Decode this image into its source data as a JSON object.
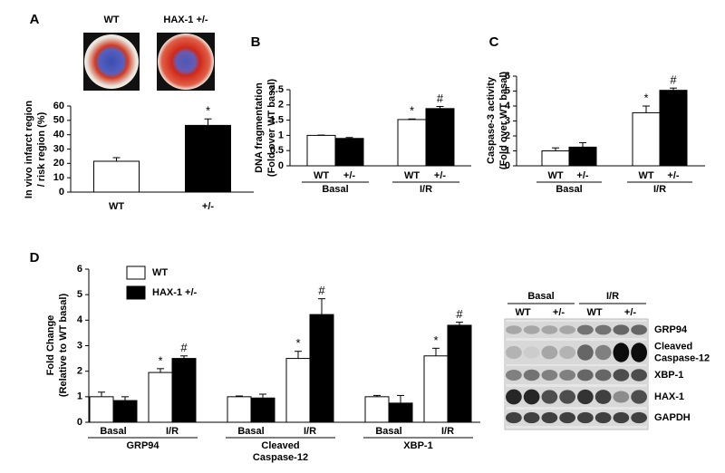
{
  "chart_data": [
    {
      "type": "bar",
      "panel": "A",
      "image_labels": [
        "WT",
        "HAX-1 +/-"
      ],
      "ylabel": [
        "In vivo infarct region",
        "/ risk region (%)"
      ],
      "categories": [
        "WT",
        "+/-"
      ],
      "values": [
        21.5,
        46.5
      ],
      "errors": [
        2.5,
        4.5
      ],
      "annotations": [
        null,
        "*"
      ],
      "colors": [
        "#ffffff",
        "#000000"
      ],
      "edgecolor": "#000000",
      "ylim": [
        0,
        60
      ],
      "yticks": [
        0,
        10,
        20,
        30,
        40,
        50,
        60
      ]
    },
    {
      "type": "bar",
      "panel": "B",
      "ylabel": [
        "DNA fragmentation",
        "(Fold over WT basal)"
      ],
      "categories": [
        "Basal",
        "I/R"
      ],
      "series": [
        {
          "name": "WT",
          "color": "#ffffff",
          "values": [
            1.0,
            1.52
          ],
          "errors": [
            0.01,
            0.02
          ],
          "annotations": [
            null,
            "*"
          ]
        },
        {
          "name": "+/-",
          "color": "#000000",
          "values": [
            0.9,
            1.88
          ],
          "errors": [
            0.03,
            0.07
          ],
          "annotations": [
            null,
            "#"
          ]
        }
      ],
      "edgecolor": "#000000",
      "ylim": [
        0,
        2.5
      ],
      "yticks": [
        0,
        0.5,
        1,
        1.5,
        2,
        2.5
      ]
    },
    {
      "type": "bar",
      "panel": "C",
      "ylabel": [
        "Caspase-3 activity",
        "(Fold over WT basal)"
      ],
      "categories": [
        "Basal",
        "I/R"
      ],
      "series": [
        {
          "name": "WT",
          "color": "#ffffff",
          "values": [
            1.0,
            3.55
          ],
          "errors": [
            0.2,
            0.45
          ],
          "annotations": [
            null,
            "*"
          ]
        },
        {
          "name": "+/-",
          "color": "#000000",
          "values": [
            1.25,
            5.05
          ],
          "errors": [
            0.3,
            0.15
          ],
          "annotations": [
            null,
            "#"
          ]
        }
      ],
      "edgecolor": "#000000",
      "ylim": [
        0,
        6
      ],
      "yticks": [
        0,
        1,
        2,
        3,
        4,
        5,
        6
      ]
    },
    {
      "type": "bar",
      "panel": "D",
      "ylabel": [
        "Fold Change",
        "(Relative to WT basal)"
      ],
      "groups": [
        [
          "GRP94"
        ],
        [
          "Cleaved",
          "Caspase-12"
        ],
        [
          "XBP-1"
        ]
      ],
      "categories": [
        "Basal",
        "I/R",
        "Basal",
        "I/R",
        "Basal",
        "I/R"
      ],
      "series": [
        {
          "name": "WT",
          "color": "#ffffff",
          "values": [
            1.0,
            1.95,
            1.0,
            2.5,
            1.0,
            2.6
          ],
          "errors": [
            0.18,
            0.15,
            0.03,
            0.28,
            0.05,
            0.3
          ],
          "annotations": [
            null,
            "*",
            null,
            "*",
            null,
            "*"
          ]
        },
        {
          "name": "HAX-1 +/-",
          "color": "#000000",
          "values": [
            0.85,
            2.5,
            0.95,
            4.22,
            0.75,
            3.8
          ],
          "errors": [
            0.15,
            0.1,
            0.15,
            0.62,
            0.3,
            0.12
          ],
          "annotations": [
            null,
            "#",
            null,
            "#",
            null,
            "#"
          ]
        }
      ],
      "legend": "top-left",
      "edgecolor": "#000000",
      "ylim": [
        0,
        6
      ],
      "yticks": [
        0,
        1,
        2,
        3,
        4,
        5,
        6
      ]
    }
  ],
  "blot": {
    "conditions": [
      "Basal",
      "I/R"
    ],
    "genotypes": [
      "WT",
      "+/-",
      "WT",
      "+/-"
    ],
    "rows": [
      [
        "GRP94"
      ],
      [
        "Cleaved",
        "Caspase-12"
      ],
      [
        "XBP-1"
      ],
      [
        "HAX-1"
      ],
      [
        "GAPDH"
      ]
    ]
  }
}
